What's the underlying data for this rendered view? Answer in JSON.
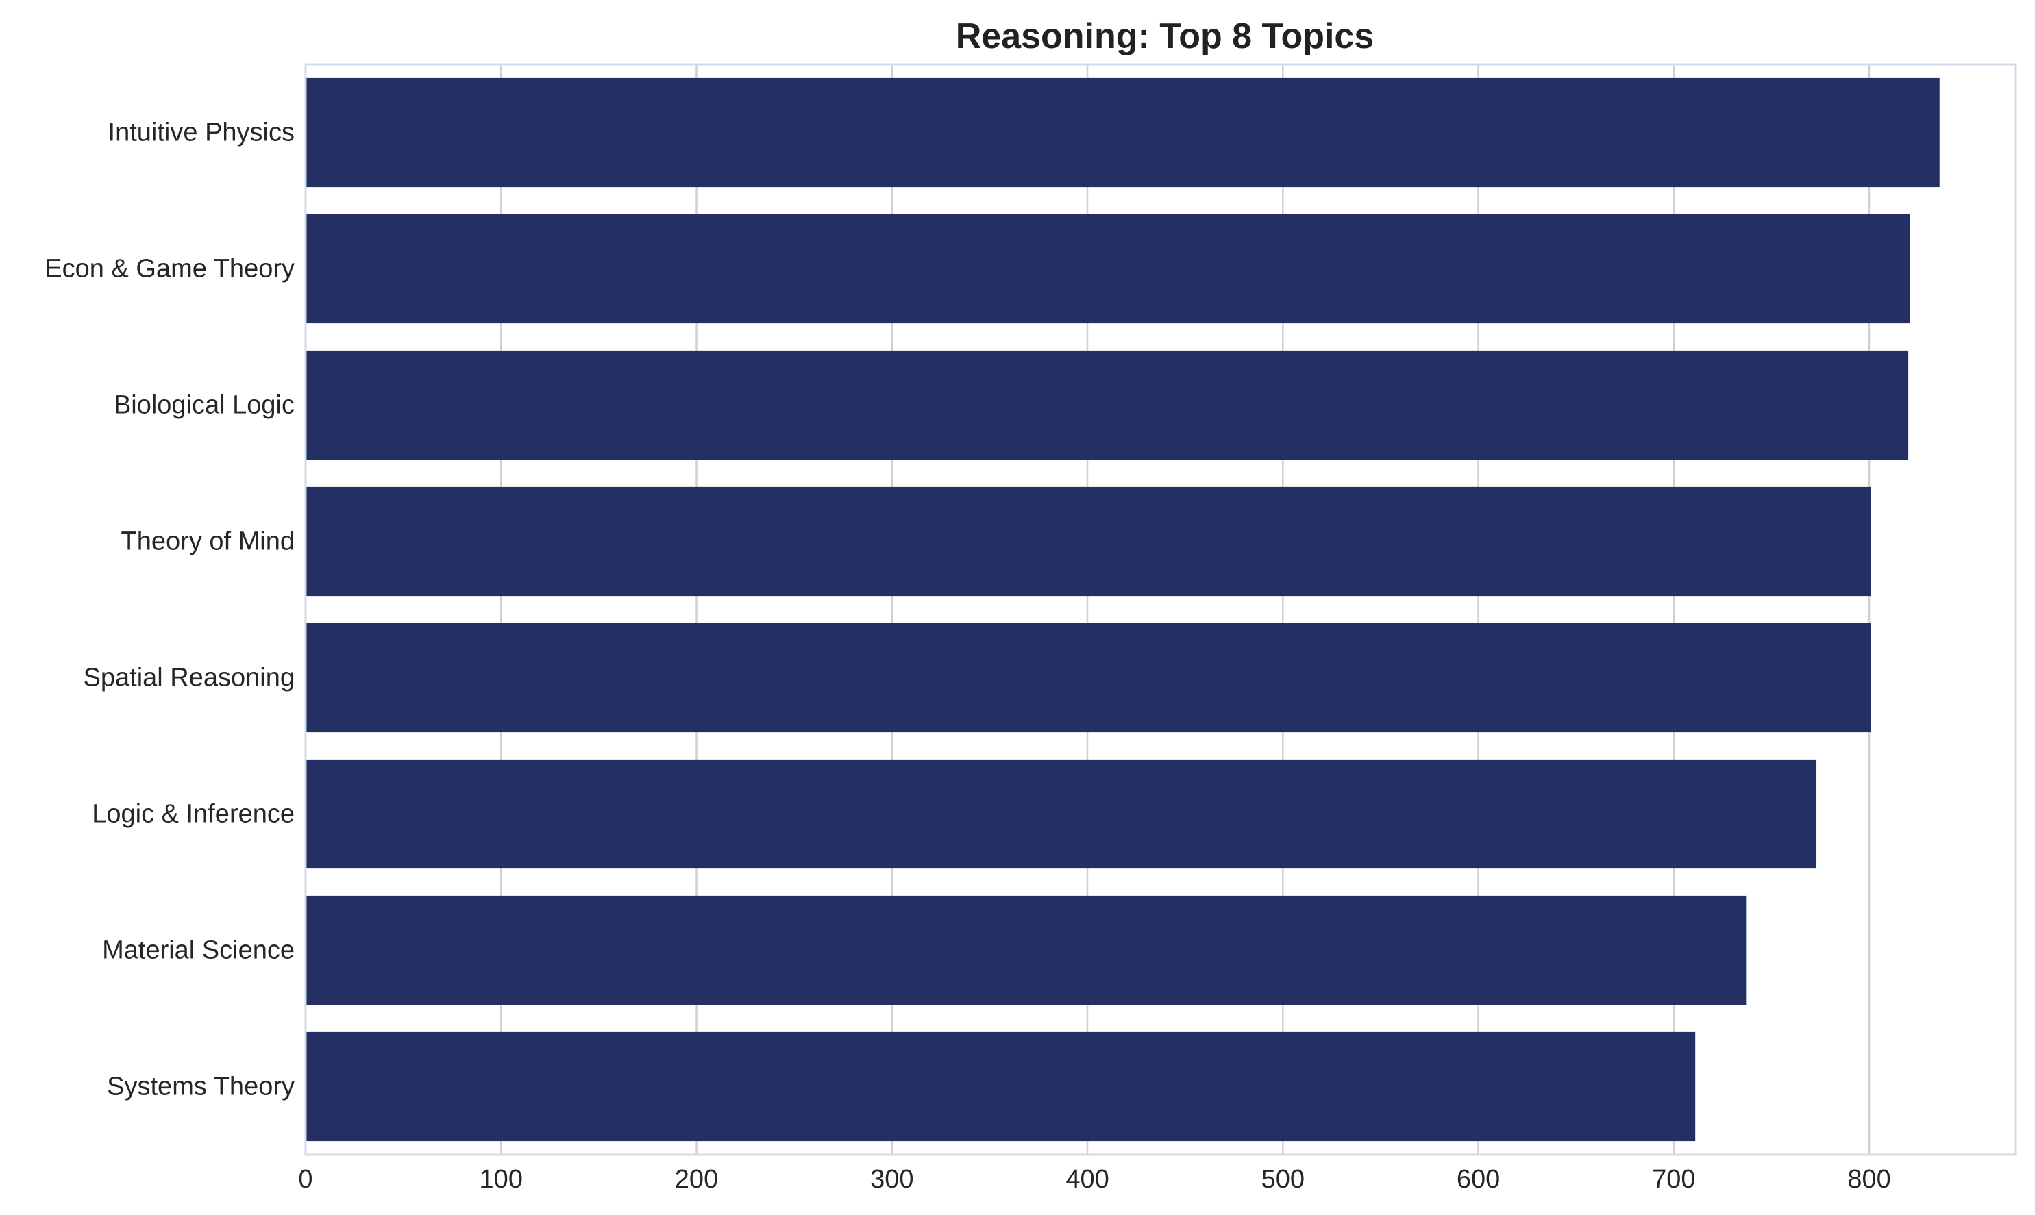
{
  "chart_data": {
    "type": "bar",
    "orientation": "horizontal",
    "title": "Reasoning: Top 8 Topics",
    "xlabel": "",
    "ylabel": "",
    "categories": [
      "Intuitive Physics",
      "Econ & Game Theory",
      "Biological Logic",
      "Theory of Mind",
      "Spatial Reasoning",
      "Logic & Inference",
      "Material Science",
      "Systems Theory"
    ],
    "values": [
      836,
      821,
      820,
      801,
      801,
      773,
      737,
      711
    ],
    "xlim": [
      0,
      875
    ],
    "xticks": [
      0,
      100,
      200,
      300,
      400,
      500,
      600,
      700,
      800
    ],
    "grid": true,
    "legend": "none",
    "bar_color": "#243063",
    "grid_color": "#d0d0d0",
    "spine_color": "#cfdbe6"
  }
}
